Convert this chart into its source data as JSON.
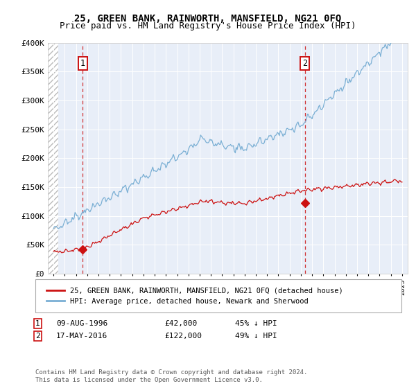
{
  "title": "25, GREEN BANK, RAINWORTH, MANSFIELD, NG21 0FQ",
  "subtitle": "Price paid vs. HM Land Registry's House Price Index (HPI)",
  "ylim": [
    0,
    400000
  ],
  "yticks": [
    0,
    50000,
    100000,
    150000,
    200000,
    250000,
    300000,
    350000,
    400000
  ],
  "ytick_labels": [
    "£0",
    "£50K",
    "£100K",
    "£150K",
    "£200K",
    "£250K",
    "£300K",
    "£350K",
    "£400K"
  ],
  "x_start_year": 1994,
  "x_end_year": 2025,
  "sale1_year": 1996.6,
  "sale1_value": 42000,
  "sale2_year": 2016.37,
  "sale2_value": 122000,
  "hpi_color": "#7aafd4",
  "price_color": "#cc1111",
  "vline_color": "#cc1111",
  "plot_bg_color": "#e8eef8",
  "legend_line1": "25, GREEN BANK, RAINWORTH, MANSFIELD, NG21 0FQ (detached house)",
  "legend_line2": "HPI: Average price, detached house, Newark and Sherwood",
  "note_line1": "Contains HM Land Registry data © Crown copyright and database right 2024.",
  "note_line2": "This data is licensed under the Open Government Licence v3.0."
}
